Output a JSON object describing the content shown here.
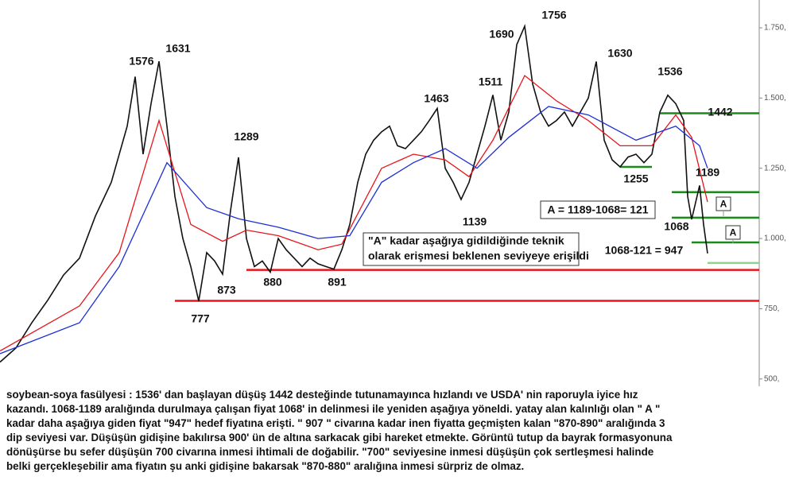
{
  "chart_data": {
    "type": "line",
    "xlim": [
      0,
      95.5
    ],
    "ylim": [
      474,
      1849
    ],
    "yticks": [
      {
        "value": 500,
        "label": "500,"
      },
      {
        "value": 750,
        "label": "750,"
      },
      {
        "value": 1000,
        "label": "1.000,"
      },
      {
        "value": 1250,
        "label": "1.250,"
      },
      {
        "value": 1500,
        "label": "1.500,"
      },
      {
        "value": 1750,
        "label": "1.750,"
      }
    ],
    "series": [
      {
        "color": "#111111",
        "x": [
          0,
          2,
          4,
          6,
          8,
          10,
          12,
          14,
          16,
          17,
          18,
          19,
          20,
          21,
          22,
          23,
          24,
          25,
          26,
          27,
          28,
          29,
          30,
          31,
          32,
          33,
          34,
          35,
          36,
          37,
          38,
          39,
          40,
          41,
          42,
          43,
          44,
          45,
          46,
          47,
          48,
          49,
          50,
          51,
          52,
          53,
          54,
          55,
          56,
          57,
          58,
          59,
          60,
          61,
          62,
          63,
          64,
          65,
          66,
          67,
          68,
          69,
          70,
          71,
          72,
          73,
          74,
          75,
          76,
          77,
          78,
          79,
          80,
          81,
          82,
          83,
          84,
          85,
          86,
          86.5,
          87,
          88,
          88.5,
          89
        ],
        "values": [
          560,
          610,
          700,
          780,
          870,
          930,
          1080,
          1200,
          1400,
          1576,
          1300,
          1480,
          1631,
          1400,
          1150,
          1000,
          900,
          777,
          950,
          920,
          873,
          1100,
          1289,
          1000,
          900,
          920,
          880,
          1000,
          960,
          930,
          900,
          930,
          910,
          900,
          891,
          960,
          1050,
          1200,
          1300,
          1350,
          1380,
          1400,
          1330,
          1320,
          1350,
          1380,
          1420,
          1463,
          1250,
          1200,
          1139,
          1200,
          1300,
          1400,
          1511,
          1350,
          1450,
          1690,
          1756,
          1550,
          1450,
          1400,
          1420,
          1450,
          1400,
          1450,
          1500,
          1630,
          1350,
          1280,
          1255,
          1290,
          1300,
          1270,
          1300,
          1450,
          1510,
          1480,
          1420,
          1150,
          1068,
          1189,
          1050,
          947
        ]
      },
      {
        "color": "#e8141b",
        "x": [
          0,
          10,
          15,
          20,
          24,
          28,
          31,
          35,
          40,
          43,
          48,
          52,
          56,
          59,
          62,
          66,
          70,
          74,
          78,
          82,
          85,
          87,
          89
        ],
        "values": [
          600,
          760,
          950,
          1420,
          1050,
          990,
          1030,
          1010,
          960,
          980,
          1250,
          1300,
          1280,
          1220,
          1350,
          1580,
          1490,
          1420,
          1330,
          1330,
          1440,
          1360,
          1130
        ]
      },
      {
        "color": "#1d2fd6",
        "x": [
          0,
          10,
          15,
          21,
          26,
          30,
          35,
          40,
          44,
          48,
          52,
          56,
          60,
          64,
          69,
          74,
          80,
          85,
          88,
          89
        ],
        "values": [
          590,
          700,
          900,
          1270,
          1110,
          1070,
          1040,
          1000,
          1010,
          1200,
          1270,
          1320,
          1250,
          1360,
          1470,
          1440,
          1350,
          1400,
          1330,
          1250
        ]
      }
    ],
    "levels": [
      {
        "value": 888,
        "color": "#e8141b",
        "x": [
          31,
          95.5
        ]
      },
      {
        "value": 778,
        "color": "#e8141b",
        "x": [
          22,
          95.5
        ]
      },
      {
        "value": 1446,
        "color": "#1a8a1a",
        "x": [
          83,
          95.5
        ]
      },
      {
        "value": 1255,
        "color": "#1a8a1a",
        "x": [
          78,
          82
        ]
      },
      {
        "value": 1165,
        "color": "#1a8a1a",
        "x": [
          84.5,
          95.5
        ]
      },
      {
        "value": 1074,
        "color": "#1a8a1a",
        "x": [
          84.5,
          95.5
        ]
      },
      {
        "value": 986,
        "color": "#1a8a1a",
        "x": [
          87,
          95.5
        ]
      },
      {
        "value": 913,
        "color": "#8fd28f",
        "x": [
          89,
          95.5
        ]
      }
    ],
    "annotations": [
      "1576",
      "1631",
      "777",
      "873",
      "1289",
      "880",
      "891",
      "1463",
      "1139",
      "1511",
      "1690",
      "1756",
      "1630",
      "1536",
      "1255",
      "1442",
      "1189",
      "1068",
      "1068-121 = 947"
    ],
    "boxes": [
      "A = 1189-1068= 121",
      "A",
      "A"
    ],
    "note": [
      "\"A\" kadar aşağıya gidildiğinde teknik",
      "olarak erişmesi beklenen seviyeye erişildi"
    ],
    "caption": [
      "soybean-soya fasülyesi : 1536' dan başlayan düşüş 1442 desteğinde tutunamayınca hızlandı ve USDA' nin raporuyla iyice hız",
      "kazandı. 1068-1189 aralığında durulmaya çalışan fiyat 1068' in delinmesi ile yeniden aşağıya yöneldi. yatay alan kalınlığı olan \" A \"",
      "kadar daha aşağıya giden fiyat \"947\" hedef fiyatına erişti. \" 907 \" civarına kadar inen fiyatta geçmişten kalan \"870-890\" aralığında 3",
      "dip seviyesi var. Düşüşün gidişine bakılırsa 900' ün de altına sarkacak gibi hareket etmekte. Görüntü tutup da bayrak formasyonuna",
      "dönüşürse bu sefer düşüşün 700 civarına inmesi ihtimali de doğabilir. \"700\" seviyesine inmesi düşüşün çok sertleşmesi halinde",
      "belki gerçekleşebilir ama fiyatın şu anki gidişine bakarsak \"870-880\" aralığına inmesi sürpriz de olmaz."
    ]
  }
}
